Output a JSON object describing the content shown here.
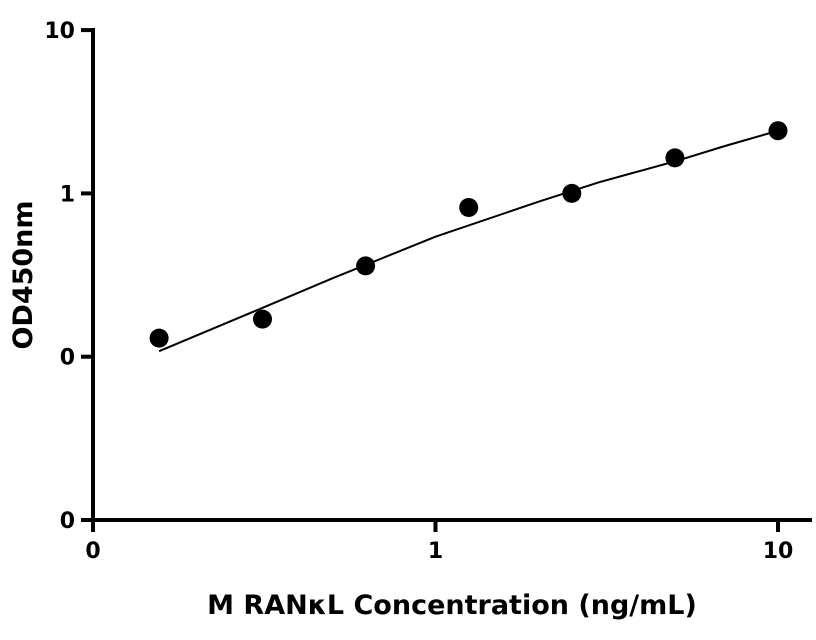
{
  "chart_data": {
    "type": "scatter",
    "title": "",
    "xlabel": "M RANκL Concentration (ng/mL)",
    "ylabel": "OD450nm",
    "x_scale": "log",
    "y_scale": "log",
    "xlim": [
      0.1,
      12
    ],
    "ylim": [
      0.01,
      10
    ],
    "x_ticks": [
      {
        "value": 0.1,
        "label": "0"
      },
      {
        "value": 1,
        "label": "1"
      },
      {
        "value": 10,
        "label": "10"
      }
    ],
    "y_ticks": [
      {
        "value": 0.01,
        "label": "0"
      },
      {
        "value": 0.1,
        "label": "0"
      },
      {
        "value": 1,
        "label": "1"
      },
      {
        "value": 10,
        "label": "10"
      }
    ],
    "grid": false,
    "legend": "none",
    "series": [
      {
        "x": [
          0.156,
          0.3125,
          0.625,
          1.25,
          2.5,
          5,
          10
        ],
        "y": [
          0.13,
          0.17,
          0.36,
          0.82,
          1.0,
          1.65,
          2.42
        ],
        "marker": "circle",
        "color": "#000000"
      }
    ],
    "fit_curve": {
      "x": [
        0.156,
        0.3,
        0.5,
        1.0,
        2.0,
        3.0,
        5.0,
        7.0,
        10.0
      ],
      "y": [
        0.108,
        0.192,
        0.302,
        0.543,
        0.89,
        1.17,
        1.57,
        1.95,
        2.42
      ],
      "color": "#000000"
    }
  }
}
